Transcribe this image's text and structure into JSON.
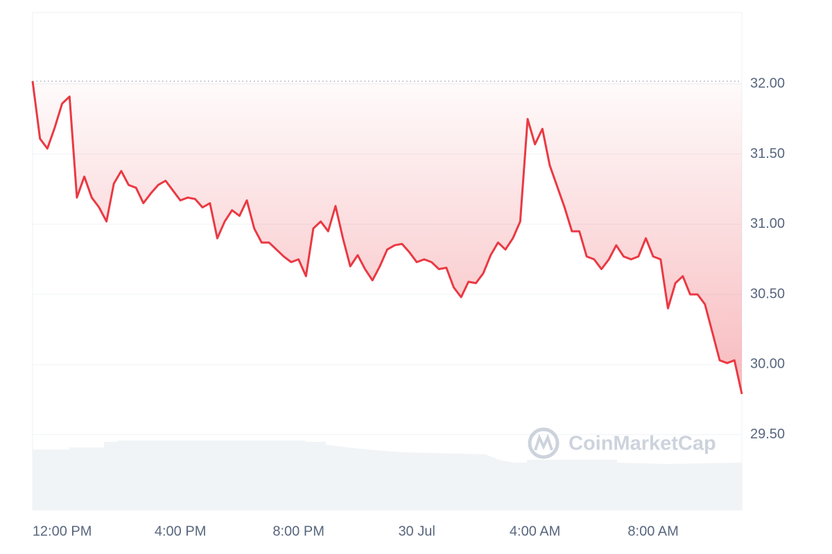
{
  "chart_data": {
    "type": "line",
    "watermark": "CoinMarketCap",
    "color": "#ea3943",
    "categories": [
      null,
      null,
      null,
      null,
      "12:00 PM",
      null,
      null,
      null,
      null,
      null,
      null,
      null,
      null,
      null,
      null,
      null,
      null,
      null,
      null,
      null,
      "4:00 PM",
      null,
      null,
      null,
      null,
      null,
      null,
      null,
      null,
      null,
      null,
      null,
      null,
      null,
      null,
      null,
      "8:00 PM",
      null,
      null,
      null,
      null,
      null,
      null,
      null,
      null,
      null,
      null,
      null,
      null,
      null,
      null,
      null,
      "30 Jul",
      null,
      null,
      null,
      null,
      null,
      null,
      null,
      null,
      null,
      null,
      null,
      null,
      null,
      null,
      null,
      "4:00 AM",
      null,
      null,
      null,
      null,
      null,
      null,
      null,
      null,
      null,
      null,
      null,
      null,
      null,
      null,
      null,
      "8:00 AM",
      null,
      null,
      null,
      null,
      null,
      null,
      null,
      null,
      null,
      null,
      null,
      null
    ],
    "values": [
      32.02,
      31.61,
      31.54,
      31.69,
      31.86,
      31.91,
      31.19,
      31.34,
      31.19,
      31.12,
      31.02,
      31.29,
      31.38,
      31.28,
      31.26,
      31.15,
      31.22,
      31.28,
      31.31,
      31.24,
      31.17,
      31.19,
      31.18,
      31.12,
      31.15,
      30.9,
      31.02,
      31.1,
      31.06,
      31.17,
      30.97,
      30.87,
      30.87,
      30.82,
      30.77,
      30.73,
      30.75,
      30.63,
      30.97,
      31.02,
      30.95,
      31.13,
      30.9,
      30.7,
      30.78,
      30.68,
      30.6,
      30.7,
      30.82,
      30.85,
      30.86,
      30.8,
      30.73,
      30.75,
      30.73,
      30.68,
      30.69,
      30.55,
      30.48,
      30.59,
      30.58,
      30.65,
      30.78,
      30.87,
      30.82,
      30.9,
      31.02,
      31.75,
      31.57,
      31.68,
      31.42,
      31.27,
      31.12,
      30.95,
      30.95,
      30.77,
      30.75,
      30.68,
      30.75,
      30.85,
      30.77,
      30.75,
      30.77,
      30.9,
      30.77,
      30.75,
      30.4,
      30.58,
      30.63,
      30.5,
      30.5,
      30.43,
      30.23,
      30.03,
      30.01,
      30.03,
      29.79
    ],
    "ylim": [
      28.96,
      32.51
    ],
    "yticks": [
      {
        "value": 29.5,
        "label": "29.50"
      },
      {
        "value": 30,
        "label": "30.00"
      },
      {
        "value": 30.5,
        "label": "30.50"
      },
      {
        "value": 31,
        "label": "31.00"
      },
      {
        "value": 31.5,
        "label": "31.50"
      },
      {
        "value": 32,
        "label": "32.00"
      }
    ],
    "grid": true
  }
}
